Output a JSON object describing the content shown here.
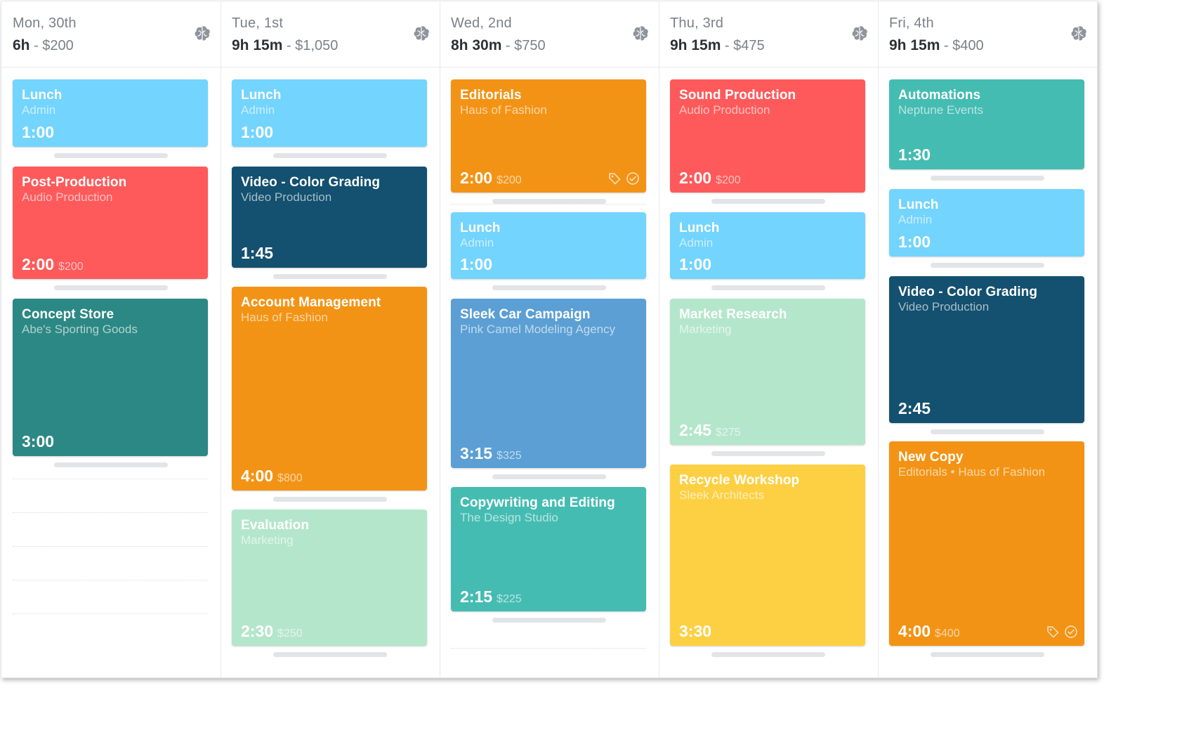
{
  "colors": {
    "light_blue": "#73d4fe",
    "red": "#fe5a5b",
    "teal_dark": "#2c8884",
    "navy": "#14506f",
    "orange": "#f39315",
    "mint": "#b4e6cb",
    "blue": "#5b9fd4",
    "teal": "#45bcb2",
    "yellow": "#fdd044"
  },
  "days": [
    {
      "label": "Mon, 30th",
      "hours": "6h",
      "separator": " - ",
      "amount": "$200",
      "icon": "brain-icon",
      "entries": [
        {
          "title": "Lunch",
          "subtitle": "Admin",
          "duration": "1:00",
          "amount": "",
          "color": "#73d4fe"
        },
        {
          "title": "Post-Production",
          "subtitle": "Audio Production",
          "duration": "2:00",
          "amount": "$200",
          "color": "#fe5a5b"
        },
        {
          "title": "Concept Store",
          "subtitle": "Abe's Sporting Goods",
          "duration": "3:00",
          "amount": "",
          "color": "#2c8884"
        }
      ]
    },
    {
      "label": "Tue, 1st",
      "hours": "9h 15m",
      "separator": " - ",
      "amount": "$1,050",
      "icon": "brain-icon",
      "entries": [
        {
          "title": "Lunch",
          "subtitle": "Admin",
          "duration": "1:00",
          "amount": "",
          "color": "#73d4fe"
        },
        {
          "title": "Video - Color Grading",
          "subtitle": "Video Production",
          "duration": "1:45",
          "amount": "",
          "color": "#14506f"
        },
        {
          "title": "Account Management",
          "subtitle": "Haus of Fashion",
          "duration": "4:00",
          "amount": "$800",
          "color": "#f39315"
        },
        {
          "title": "Evaluation",
          "subtitle": "Marketing",
          "duration": "2:30",
          "amount": "$250",
          "color": "#b4e6cb"
        }
      ]
    },
    {
      "label": "Wed, 2nd",
      "hours": "8h 30m",
      "separator": " - ",
      "amount": "$750",
      "icon": "brain-icon",
      "entries": [
        {
          "title": "Editorials",
          "subtitle": "Haus of Fashion",
          "duration": "2:00",
          "amount": "$200",
          "color": "#f39315",
          "icons": [
            "tag-icon",
            "check-circle-icon"
          ]
        },
        {
          "title": "Lunch",
          "subtitle": "Admin",
          "duration": "1:00",
          "amount": "",
          "color": "#73d4fe"
        },
        {
          "title": "Sleek Car Campaign",
          "subtitle": "Pink Camel Modeling Agency",
          "duration": "3:15",
          "amount": "$325",
          "color": "#5b9fd4"
        },
        {
          "title": "Copywriting and Editing",
          "subtitle": "The Design Studio",
          "duration": "2:15",
          "amount": "$225",
          "color": "#45bcb2"
        }
      ]
    },
    {
      "label": "Thu, 3rd",
      "hours": "9h 15m",
      "separator": " - ",
      "amount": "$475",
      "icon": "brain-icon",
      "entries": [
        {
          "title": "Sound Production",
          "subtitle": "Audio Production",
          "duration": "2:00",
          "amount": "$200",
          "color": "#fe5a5b"
        },
        {
          "title": "Lunch",
          "subtitle": "Admin",
          "duration": "1:00",
          "amount": "",
          "color": "#73d4fe"
        },
        {
          "title": "Market Research",
          "subtitle": "Marketing",
          "duration": "2:45",
          "amount": "$275",
          "color": "#b4e6cb"
        },
        {
          "title": "Recycle Workshop",
          "subtitle": "Sleek Architects",
          "duration": "3:30",
          "amount": "",
          "color": "#fdd044"
        }
      ]
    },
    {
      "label": "Fri, 4th",
      "hours": "9h 15m",
      "separator": " - ",
      "amount": "$400",
      "icon": "brain-icon",
      "entries": [
        {
          "title": "Automations",
          "subtitle": "Neptune Events",
          "duration": "1:30",
          "amount": "",
          "color": "#45bcb2"
        },
        {
          "title": "Lunch",
          "subtitle": "Admin",
          "duration": "1:00",
          "amount": "",
          "color": "#73d4fe"
        },
        {
          "title": "Video - Color Grading",
          "subtitle": "Video Production",
          "duration": "2:45",
          "amount": "",
          "color": "#14506f"
        },
        {
          "title": "New Copy",
          "subtitle": "Editorials • Haus of Fashion",
          "duration": "4:00",
          "amount": "$400",
          "color": "#f39315",
          "icons": [
            "tag-icon",
            "check-circle-icon"
          ]
        }
      ]
    }
  ]
}
